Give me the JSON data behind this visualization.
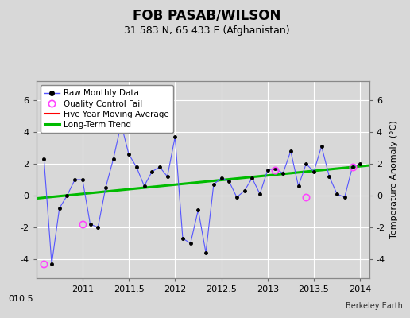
{
  "title": "FOB PASAB/WILSON",
  "subtitle": "31.583 N, 65.433 E (Afghanistan)",
  "ylabel": "Temperature Anomaly (°C)",
  "attribution": "Berkeley Earth",
  "xlim": [
    2010.5,
    2014.1
  ],
  "ylim": [
    -5.2,
    7.2
  ],
  "yticks": [
    -4,
    -2,
    0,
    2,
    4,
    6
  ],
  "xticks": [
    2011,
    2011.5,
    2012,
    2012.5,
    2013,
    2013.5,
    2014
  ],
  "xtick_labels": [
    "2011",
    "2011.5",
    "2012",
    "2012.5",
    "2013",
    "2013.5",
    "2014"
  ],
  "bg_color": "#d8d8d8",
  "plot_bg_color": "#d8d8d8",
  "grid_color": "#ffffff",
  "raw_x": [
    2010.583,
    2010.667,
    2010.75,
    2010.833,
    2010.917,
    2011.0,
    2011.083,
    2011.167,
    2011.25,
    2011.333,
    2011.417,
    2011.5,
    2011.583,
    2011.667,
    2011.75,
    2011.833,
    2011.917,
    2012.0,
    2012.083,
    2012.167,
    2012.25,
    2012.333,
    2012.417,
    2012.5,
    2012.583,
    2012.667,
    2012.75,
    2012.833,
    2012.917,
    2013.0,
    2013.083,
    2013.167,
    2013.25,
    2013.333,
    2013.417,
    2013.5,
    2013.583,
    2013.667,
    2013.75,
    2013.833,
    2013.917,
    2014.0
  ],
  "raw_y": [
    2.3,
    -4.3,
    -0.8,
    0.0,
    1.0,
    1.0,
    -1.8,
    -2.0,
    0.5,
    2.3,
    4.5,
    2.6,
    1.8,
    0.6,
    1.5,
    1.8,
    1.2,
    3.7,
    -2.7,
    -3.0,
    -0.9,
    -3.6,
    0.7,
    1.1,
    0.9,
    -0.1,
    0.3,
    1.1,
    0.1,
    1.6,
    1.7,
    1.4,
    2.8,
    0.6,
    2.0,
    1.5,
    3.1,
    1.2,
    0.1,
    -0.1,
    1.8,
    2.0
  ],
  "qc_fail_x": [
    2010.583,
    2011.0,
    2013.083,
    2013.417,
    2013.917
  ],
  "qc_fail_y": [
    -4.3,
    -1.8,
    1.6,
    -0.1,
    1.8
  ],
  "trend_x": [
    2010.5,
    2014.1
  ],
  "trend_y": [
    -0.18,
    1.9
  ],
  "raw_color": "#5555ff",
  "raw_marker_color": "#000000",
  "qc_color": "#ff44ff",
  "trend_color": "#00bb00",
  "moving_avg_color": "#ff0000",
  "legend_bg": "#ffffff",
  "title_fontsize": 12,
  "subtitle_fontsize": 9,
  "label_fontsize": 8,
  "tick_fontsize": 8
}
